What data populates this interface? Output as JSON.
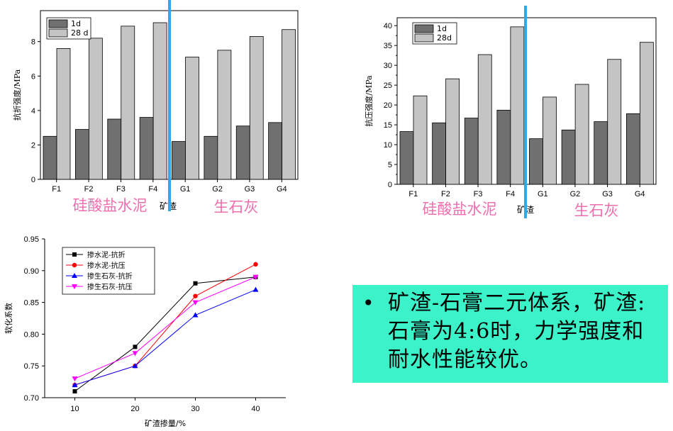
{
  "chart_data": [
    {
      "id": "flexural",
      "type": "bar",
      "categories": [
        "F1",
        "F2",
        "F3",
        "F4",
        "G1",
        "G2",
        "G3",
        "G4"
      ],
      "series": [
        {
          "name": "1d",
          "color": "#707070",
          "values": [
            2.5,
            2.9,
            3.5,
            3.6,
            2.2,
            2.5,
            3.1,
            3.3
          ]
        },
        {
          "name": "28 d",
          "color": "#c4c4c4",
          "values": [
            7.6,
            8.2,
            8.9,
            9.1,
            7.1,
            7.5,
            8.3,
            8.7
          ]
        }
      ],
      "ylabel": "抗折强度/MPa",
      "ylim": [
        0,
        9.8
      ],
      "yticks": [
        0,
        2,
        4,
        6,
        8
      ],
      "group_labels": [
        "硅酸盐水泥",
        "矿渣",
        "生石灰"
      ],
      "legend": "top-left"
    },
    {
      "id": "compressive",
      "type": "bar",
      "categories": [
        "F1",
        "F2",
        "F3",
        "F4",
        "G1",
        "G2",
        "G3",
        "G4"
      ],
      "series": [
        {
          "name": "1d",
          "color": "#707070",
          "values": [
            13.3,
            15.5,
            16.7,
            18.7,
            11.5,
            13.7,
            15.8,
            17.8
          ]
        },
        {
          "name": "28d",
          "color": "#c4c4c4",
          "values": [
            22.3,
            26.6,
            32.7,
            39.7,
            22.0,
            25.2,
            31.5,
            35.8
          ]
        }
      ],
      "ylabel": "抗压强度/MPa",
      "ylim": [
        0,
        42
      ],
      "yticks": [
        0,
        5,
        10,
        15,
        20,
        25,
        30,
        35,
        40
      ],
      "group_labels": [
        "硅酸盐水泥",
        "矿渣",
        "生石灰"
      ],
      "legend": "top-left"
    },
    {
      "id": "softening",
      "type": "line",
      "x": [
        10,
        20,
        30,
        40
      ],
      "xlim": [
        5,
        45
      ],
      "ylim": [
        0.7,
        0.95
      ],
      "xticks": [
        10,
        20,
        30,
        40
      ],
      "yticks": [
        "0.70",
        "0.75",
        "0.80",
        "0.85",
        "0.90",
        "0.95"
      ],
      "xlabel": "矿渣掺量/%",
      "ylabel": "软化系数",
      "legend": "top-left",
      "series": [
        {
          "name": "掺水泥-抗折",
          "color": "#000000",
          "marker": "square",
          "values": [
            0.71,
            0.78,
            0.88,
            0.89
          ]
        },
        {
          "name": "掺水泥-抗压",
          "color": "#ff0000",
          "marker": "circle",
          "values": [
            0.72,
            0.75,
            0.86,
            0.91
          ]
        },
        {
          "name": "掺生石灰-抗折",
          "color": "#0000ff",
          "marker": "triangle-up",
          "values": [
            0.72,
            0.75,
            0.83,
            0.87
          ]
        },
        {
          "name": "掺生石灰-抗压",
          "color": "#ff00ff",
          "marker": "triangle-down",
          "values": [
            0.73,
            0.77,
            0.85,
            0.89
          ]
        }
      ]
    }
  ],
  "callout": {
    "bullet": "•",
    "text": "矿渣-石膏二元体系，矿渣:石膏为4:6时，力学强度和耐水性能较优。"
  }
}
